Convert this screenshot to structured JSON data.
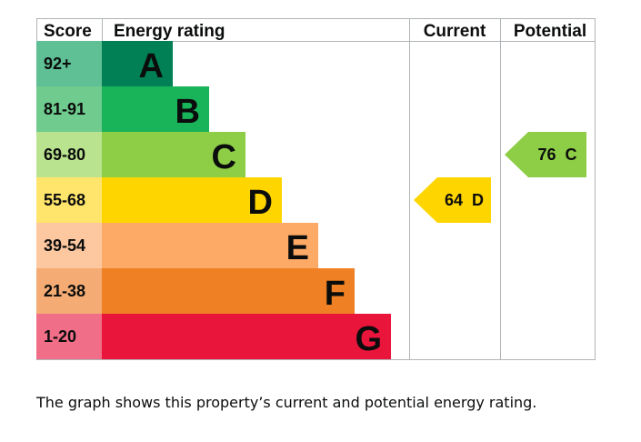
{
  "chart_data": {
    "type": "bar",
    "headers": {
      "score": "Score",
      "rating": "Energy rating",
      "current": "Current",
      "potential": "Potential"
    },
    "bands": [
      {
        "letter": "A",
        "range": "92+",
        "min": 92,
        "max": 100,
        "color": "#008054",
        "score_color": "#5fbf95"
      },
      {
        "letter": "B",
        "range": "81-91",
        "min": 81,
        "max": 91,
        "color": "#19b459",
        "score_color": "#6fcb8e"
      },
      {
        "letter": "C",
        "range": "69-80",
        "min": 69,
        "max": 80,
        "color": "#8dce46",
        "score_color": "#bae38f"
      },
      {
        "letter": "D",
        "range": "55-68",
        "min": 55,
        "max": 68,
        "color": "#ffd500",
        "score_color": "#ffe56b"
      },
      {
        "letter": "E",
        "range": "39-54",
        "min": 39,
        "max": 54,
        "color": "#fcaa65",
        "score_color": "#fdc8a0"
      },
      {
        "letter": "F",
        "range": "21-38",
        "min": 21,
        "max": 38,
        "color": "#ef8023",
        "score_color": "#f4ab74"
      },
      {
        "letter": "G",
        "range": "1-20",
        "min": 1,
        "max": 20,
        "color": "#e9153b",
        "score_color": "#f06e88"
      }
    ],
    "current": {
      "value": 64,
      "band": "D",
      "label": "64 D",
      "color": "#ffd500"
    },
    "potential": {
      "value": 76,
      "band": "C",
      "label": "76 C",
      "color": "#8dce46"
    }
  },
  "caption": "The graph shows this property’s current and potential energy rating."
}
